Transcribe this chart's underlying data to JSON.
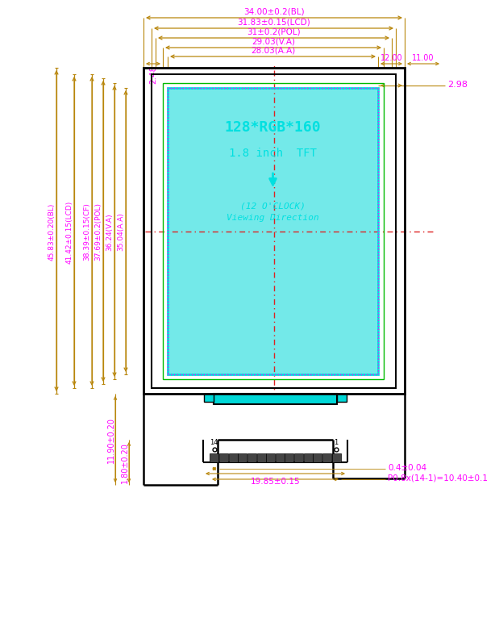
{
  "bg": "#ffffff",
  "gold": "#b8860b",
  "magenta": "#ff00ff",
  "cyan": "#00e0e0",
  "green": "#00bb00",
  "red": "#dd2222",
  "black": "#000000",
  "top_dim_labels": [
    "34.00±0.2(BL)",
    "31.83±0.15(LCD)",
    "31±0.2(POL)",
    "29.03(V.A)",
    "28.03(A.A)"
  ],
  "left_dim_labels": [
    "35.04(A.A)",
    "36.24(V.A)",
    "37.69±0.2(POL)",
    "38.39±0.15(CF)",
    "41.42±0.15(LCD)",
    "45.83±0.20(BL)"
  ],
  "lbl_248": "2.48",
  "lbl_298": "2.98",
  "lbl_1200": "12.00",
  "lbl_1100": "11.00",
  "lbl_004": "0.4±0.04",
  "lbl_pitch": "P0.8x(14-1)=10.40±0.1",
  "lbl_1985": "19.85±0.15",
  "lbl_180": "1.80±0.20",
  "lbl_1190": "11.90±0.20",
  "txt_res": "128*RGB*160",
  "txt_tft": "1.8 inch  TFT",
  "txt_clock": "(12 O'CLOCK)",
  "txt_view": "Viewing Direction"
}
